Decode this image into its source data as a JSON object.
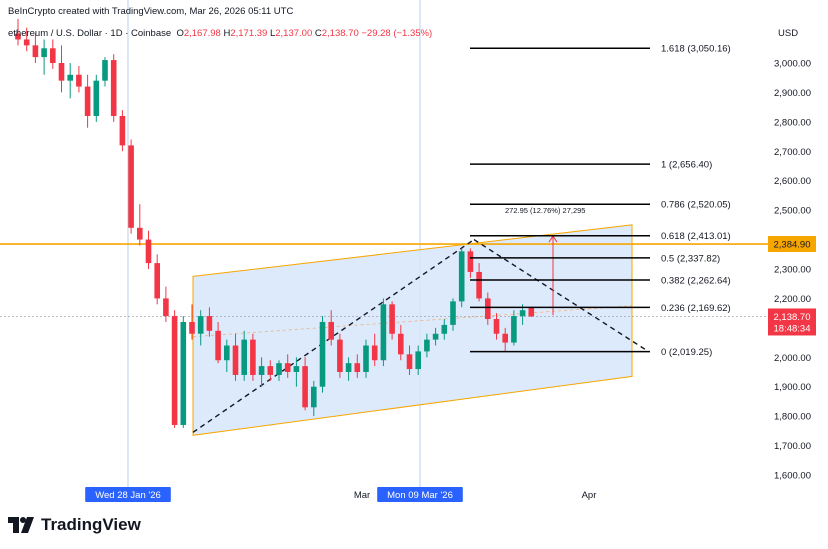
{
  "header": {
    "credit": "BeInCrypto created with TradingView.com, Mar 26, 2026 05:11 UTC",
    "symbol": "ethereum / U.S. Dollar · 1D · Coinbase",
    "o_label": "O",
    "o_value": "2,167.98",
    "h_label": "H",
    "h_value": "2,171.39",
    "l_label": "L",
    "l_value": "2,137.00",
    "c_label": "C",
    "c_value": "2,138.70",
    "change": "−29.28 (−1.35%)"
  },
  "currency": "USD",
  "brand": "TradingView",
  "colors": {
    "up": "#089981",
    "down": "#f23645",
    "channel": "#d7e6fb",
    "orange": "#f7a600",
    "fib": "#000000"
  },
  "chart_data": {
    "type": "candlestick",
    "y_axis": {
      "ylim": [
        1550,
        3175
      ],
      "ticks": [
        "1,600.00",
        "1,700.00",
        "1,800.00",
        "1,900.00",
        "2,000.00",
        "2,100.00",
        "2,200.00",
        "2,300.00",
        "2,400.00",
        "2,500.00",
        "2,600.00",
        "2,700.00",
        "2,800.00",
        "2,900.00",
        "3,000.00"
      ]
    },
    "x_axis": {
      "labels": [
        "Wed 28 Jan '26",
        "Mar",
        "Mon 09 Mar '26",
        "Apr"
      ]
    },
    "price_labels": {
      "orange": "2,384.90",
      "current": "2,138.70",
      "countdown": "18:48:34"
    },
    "fib_levels": [
      {
        "label": "1.618 (3,050.16)",
        "value": 3050.16
      },
      {
        "label": "1 (2,656.40)",
        "value": 2656.4
      },
      {
        "label": "0.786 (2,520.05)",
        "value": 2520.05
      },
      {
        "label": "0.618 (2,413.01)",
        "value": 2413.01
      },
      {
        "label": "0.5 (2,337.82)",
        "value": 2337.82
      },
      {
        "label": "0.382 (2,262.64)",
        "value": 2262.64
      },
      {
        "label": "0.236 (2,169.62)",
        "value": 2169.62
      },
      {
        "label": "0 (2,019.25)",
        "value": 2019.25
      }
    ],
    "measure_label": "272.95 (12.76%) 27,295",
    "candles": [
      [
        3100,
        3150,
        3060,
        3080
      ],
      [
        3080,
        3120,
        3040,
        3060
      ],
      [
        3060,
        3100,
        3000,
        3020
      ],
      [
        3020,
        3080,
        2960,
        3050
      ],
      [
        3050,
        3080,
        2980,
        3000
      ],
      [
        3000,
        3060,
        2900,
        2940
      ],
      [
        2940,
        3000,
        2880,
        2960
      ],
      [
        2960,
        2990,
        2900,
        2920
      ],
      [
        2920,
        2960,
        2780,
        2820
      ],
      [
        2820,
        2960,
        2800,
        2940
      ],
      [
        2940,
        3020,
        2920,
        3010
      ],
      [
        3010,
        3030,
        2800,
        2820
      ],
      [
        2820,
        2840,
        2700,
        2720
      ],
      [
        2720,
        2740,
        2420,
        2440
      ],
      [
        2440,
        2520,
        2380,
        2400
      ],
      [
        2400,
        2430,
        2300,
        2320
      ],
      [
        2320,
        2350,
        2180,
        2200
      ],
      [
        2200,
        2240,
        2120,
        2140
      ],
      [
        2140,
        2160,
        1760,
        1770
      ],
      [
        1770,
        2140,
        1760,
        2120
      ],
      [
        2120,
        2180,
        2060,
        2080
      ],
      [
        2080,
        2160,
        2040,
        2140
      ],
      [
        2140,
        2170,
        2070,
        2090
      ],
      [
        2090,
        2120,
        1980,
        1990
      ],
      [
        1990,
        2060,
        1950,
        2040
      ],
      [
        2040,
        2080,
        1920,
        1940
      ],
      [
        1940,
        2090,
        1920,
        2060
      ],
      [
        2060,
        2080,
        1920,
        1940
      ],
      [
        1940,
        2000,
        1900,
        1970
      ],
      [
        1970,
        1990,
        1920,
        1940
      ],
      [
        1940,
        1990,
        1920,
        1980
      ],
      [
        1980,
        2010,
        1930,
        1950
      ],
      [
        1950,
        2000,
        1900,
        1970
      ],
      [
        1970,
        2000,
        1820,
        1830
      ],
      [
        1830,
        1920,
        1800,
        1900
      ],
      [
        1900,
        2140,
        1880,
        2120
      ],
      [
        2120,
        2160,
        2040,
        2060
      ],
      [
        2060,
        2080,
        1930,
        1950
      ],
      [
        1950,
        2000,
        1920,
        1980
      ],
      [
        1980,
        2010,
        1930,
        1950
      ],
      [
        1950,
        2060,
        1930,
        2040
      ],
      [
        2040,
        2080,
        1970,
        1990
      ],
      [
        1990,
        2200,
        1970,
        2180
      ],
      [
        2180,
        2190,
        2060,
        2080
      ],
      [
        2080,
        2110,
        1990,
        2010
      ],
      [
        2010,
        2040,
        1940,
        1960
      ],
      [
        1960,
        2040,
        1940,
        2020
      ],
      [
        2020,
        2080,
        2000,
        2060
      ],
      [
        2060,
        2100,
        2040,
        2080
      ],
      [
        2080,
        2130,
        2060,
        2110
      ],
      [
        2110,
        2200,
        2090,
        2190
      ],
      [
        2190,
        2370,
        2170,
        2360
      ],
      [
        2360,
        2370,
        2270,
        2290
      ],
      [
        2290,
        2320,
        2190,
        2200
      ],
      [
        2200,
        2220,
        2110,
        2130
      ],
      [
        2130,
        2150,
        2060,
        2080
      ],
      [
        2080,
        2100,
        2020,
        2050
      ],
      [
        2050,
        2160,
        2040,
        2140
      ],
      [
        2140,
        2180,
        2110,
        2160
      ],
      [
        2168,
        2171,
        2137,
        2139
      ]
    ]
  }
}
